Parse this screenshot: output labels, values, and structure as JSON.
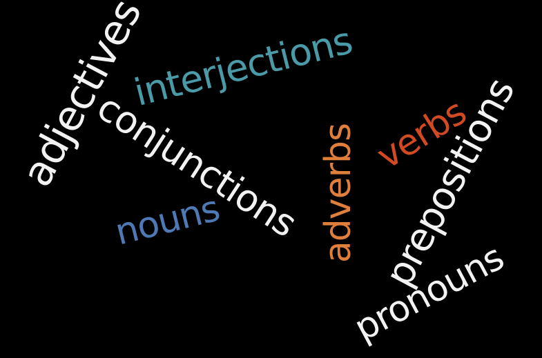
{
  "words": [
    {
      "text": "adjectives",
      "color": "#f2f2f2"
    },
    {
      "text": "interjections",
      "color": "#4a9aa8"
    },
    {
      "text": "conjunctions",
      "color": "#f2f2f2"
    },
    {
      "text": "nouns",
      "color": "#4f79b5"
    },
    {
      "text": "adverbs",
      "color": "#e07f3c"
    },
    {
      "text": "verbs",
      "color": "#d24a22"
    },
    {
      "text": "prepositions",
      "color": "#f2f2f2"
    },
    {
      "text": "pronouns",
      "color": "#f2f2f2"
    }
  ]
}
